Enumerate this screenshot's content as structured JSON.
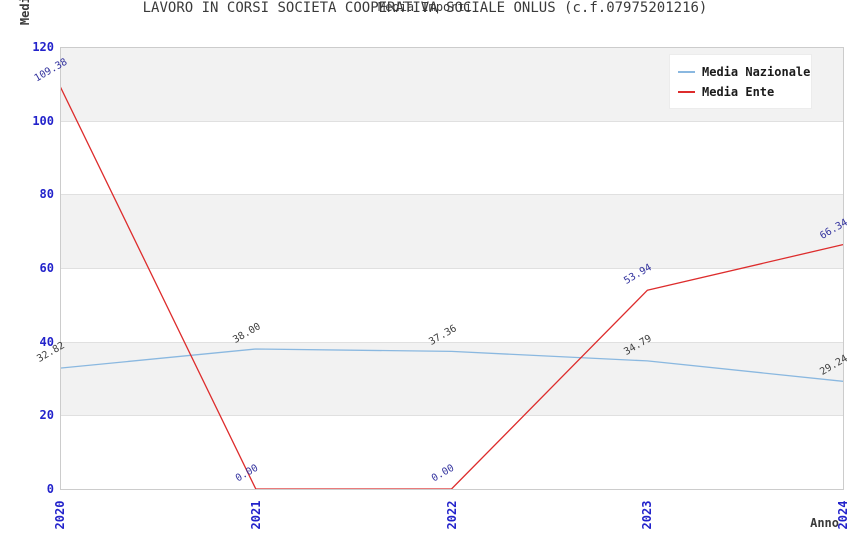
{
  "header": {
    "title": "LAVORO IN CORSI SOCIETA COOPERATIVA SOCIALE ONLUS (c.f.07975201216)",
    "subtitle": "Media Importi"
  },
  "chart_data": {
    "type": "line",
    "title": "LAVORO IN CORSI SOCIETA COOPERATIVA SOCIALE ONLUS (c.f.07975201216)",
    "subtitle": "Media Importi",
    "xlabel": "Anno",
    "ylabel": "Media",
    "categories": [
      "2020",
      "2021",
      "2022",
      "2023",
      "2024"
    ],
    "series": [
      {
        "name": "Media Nazionale",
        "color": "#8ab8e0",
        "label_color": "#404040",
        "values": [
          32.82,
          38.0,
          37.36,
          34.79,
          29.24
        ]
      },
      {
        "name": "Media Ente",
        "color": "#dd2c2c",
        "label_color": "#32329e",
        "values": [
          109.38,
          0.0,
          0.0,
          53.94,
          66.34
        ]
      }
    ],
    "ylim": [
      0,
      120
    ],
    "ytick_step": 20,
    "yticks": [
      0,
      20,
      40,
      60,
      80,
      100,
      120
    ],
    "grid": "horizontal",
    "band_color": "#f2f2f2",
    "gridline_color": "#e0e0e0",
    "axis_border_color": "#cccccc",
    "tick_label_color": "#2323cb",
    "legend_position": "top-right",
    "legend_entries": [
      "Media Nazionale",
      "Media Ente"
    ]
  }
}
